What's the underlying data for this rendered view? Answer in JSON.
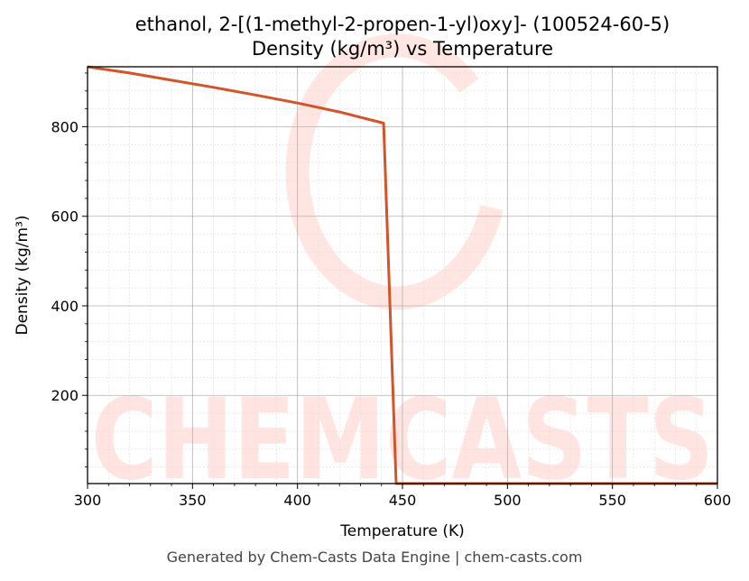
{
  "chart_data": {
    "type": "line",
    "title": "ethanol, 2-[(1-methyl-2-propen-1-yl)oxy]- (100524-60-5)",
    "subtitle": "Density (kg/m³) vs Temperature",
    "xlabel": "Temperature (K)",
    "ylabel": "Density (kg/m³)",
    "xlim": [
      300,
      600
    ],
    "ylim": [
      3,
      934
    ],
    "x_ticks": [
      300,
      350,
      400,
      450,
      500,
      550,
      600
    ],
    "y_ticks": [
      200,
      400,
      600,
      800
    ],
    "grid": true,
    "series": [
      {
        "color": "#d4542a",
        "x": [
          300,
          320,
          340,
          360,
          380,
          400,
          420,
          441,
          447,
          460,
          500,
          550,
          600
        ],
        "y": [
          934,
          920,
          904,
          888,
          871,
          853,
          833,
          808,
          3,
          3,
          3,
          3,
          3
        ]
      }
    ]
  },
  "watermark": "CHEMCASTS",
  "footer": "Generated by Chem-Casts Data Engine | chem-casts.com"
}
